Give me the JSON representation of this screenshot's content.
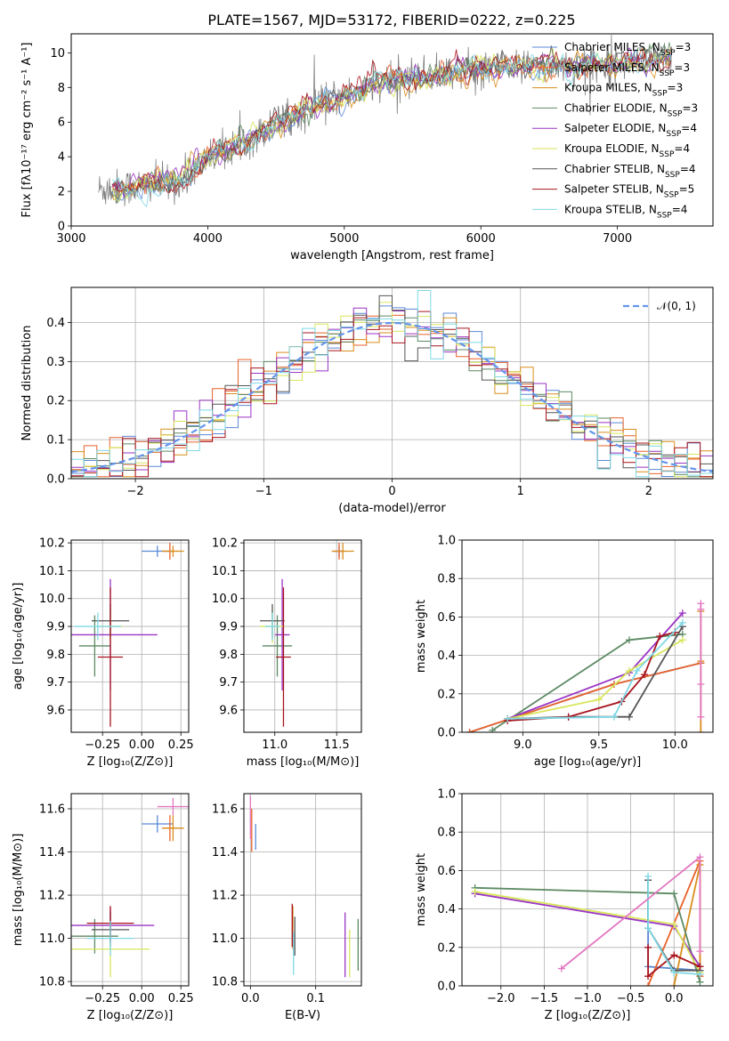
{
  "figure": {
    "title": "PLATE=1567, MJD=53172, FIBERID=0222, z=0.225"
  },
  "models": [
    {
      "name": "Chabrier MILES, N_SSP=3",
      "label": "Chabrier MILES, N",
      "sub": "SSP",
      "tail": "=3",
      "color": "#5b88d6"
    },
    {
      "name": "Salpeter MILES, N_SSP=3",
      "label": "Salpeter MILES, N",
      "sub": "SSP",
      "tail": "=3",
      "color": "#e9622a"
    },
    {
      "name": "Kroupa MILES, N_SSP=3",
      "label": "Kroupa MILES, N",
      "sub": "SSP",
      "tail": "=3",
      "color": "#d98e1d"
    },
    {
      "name": "Chabrier ELODIE, N_SSP=3",
      "label": "Chabrier ELODIE, N",
      "sub": "SSP",
      "tail": "=3",
      "color": "#5d8a64"
    },
    {
      "name": "Salpeter ELODIE, N_SSP=4",
      "label": "Salpeter ELODIE, N",
      "sub": "SSP",
      "tail": "=4",
      "color": "#9a35c4"
    },
    {
      "name": "Kroupa ELODIE, N_SSP=4",
      "label": "Kroupa ELODIE, N",
      "sub": "SSP",
      "tail": "=4",
      "color": "#d8e65a"
    },
    {
      "name": "Chabrier STELIB, N_SSP=4",
      "label": "Chabrier STELIB, N",
      "sub": "SSP",
      "tail": "=4",
      "color": "#555555"
    },
    {
      "name": "Salpeter STELIB, N_SSP=5",
      "label": "Salpeter STELIB, N",
      "sub": "SSP",
      "tail": "=5",
      "color": "#a8141e"
    },
    {
      "name": "Kroupa STELIB, N_SSP=4",
      "label": "Kroupa STELIB, N",
      "sub": "SSP",
      "tail": "=4",
      "color": "#7fd8e6"
    }
  ],
  "chart_data": [
    {
      "id": "spectrum",
      "type": "line",
      "title": "PLATE=1567, MJD=53172, FIBERID=0222, z=0.225",
      "xlabel": "wavelength [Angstrom, rest frame]",
      "ylabel": "Flux [fλ10⁻¹⁷ erg cm⁻² s⁻¹ A⁻¹]",
      "xlim": [
        3000,
        7700
      ],
      "ylim": [
        0,
        11.1
      ],
      "xticks": [
        3000,
        4000,
        5000,
        6000,
        7000
      ],
      "yticks": [
        0,
        2,
        4,
        6,
        8,
        10
      ],
      "grid": false,
      "legend": "top-right",
      "observed_color": "#808080",
      "continuum": [
        [
          3200,
          2.1
        ],
        [
          3500,
          2.3
        ],
        [
          3800,
          2.6
        ],
        [
          4000,
          4.0
        ],
        [
          4300,
          5.0
        ],
        [
          4600,
          6.3
        ],
        [
          4900,
          7.2
        ],
        [
          5200,
          8.1
        ],
        [
          5600,
          8.7
        ],
        [
          6000,
          9.1
        ],
        [
          6500,
          9.2
        ],
        [
          7000,
          9.4
        ],
        [
          7400,
          9.7
        ]
      ]
    },
    {
      "id": "residuals",
      "type": "line",
      "xlabel": "(data-model)/error",
      "ylabel": "Normed distribution",
      "xlim": [
        -2.5,
        2.5
      ],
      "ylim": [
        0,
        0.49
      ],
      "xticks": [
        -2,
        -1,
        0,
        1,
        2
      ],
      "yticks": [
        0.0,
        0.1,
        0.2,
        0.3,
        0.4
      ],
      "grid": true,
      "legend": "top-right",
      "reference": {
        "name": "𝒩(0, 1)",
        "mean": 0,
        "sigma": 1,
        "color": "#6495ed"
      },
      "histogram_bin_width": 0.1
    },
    {
      "id": "age_vs_Z",
      "type": "scatter",
      "xlabel": "Z [log₁₀(Z/Z⊙)]",
      "ylabel": "age [log₁₀(age/yr)]",
      "xlim": [
        -0.45,
        0.3
      ],
      "ylim": [
        9.52,
        10.21
      ],
      "xticks": [
        -0.25,
        0.0,
        0.25
      ],
      "yticks": [
        9.6,
        9.7,
        9.8,
        9.9,
        10.0,
        10.1,
        10.2
      ],
      "grid": true,
      "points": [
        {
          "model": 0,
          "x": 0.1,
          "xerr": 0.1,
          "y": 10.17,
          "yerr": 0.02
        },
        {
          "model": 1,
          "x": 0.18,
          "xerr": 0.05,
          "y": 10.17,
          "yerr": 0.03
        },
        {
          "model": 2,
          "x": 0.2,
          "xerr": 0.07,
          "y": 10.17,
          "yerr": 0.02
        },
        {
          "model": 3,
          "x": -0.3,
          "xerr": 0.1,
          "y": 9.83,
          "yerr": 0.11
        },
        {
          "model": 4,
          "x": -0.2,
          "xerr": 0.3,
          "y": 9.87,
          "yerr": 0.2
        },
        {
          "model": 5,
          "x": -0.2,
          "xerr": 0.08,
          "y": 9.9,
          "yerr": 0.06
        },
        {
          "model": 6,
          "x": -0.2,
          "xerr": 0.12,
          "y": 9.92,
          "yerr": 0.06
        },
        {
          "model": 7,
          "x": -0.2,
          "xerr": 0.08,
          "y": 9.79,
          "yerr": 0.25
        },
        {
          "model": 8,
          "x": -0.28,
          "xerr": 0.15,
          "y": 9.9,
          "yerr": 0.05
        }
      ]
    },
    {
      "id": "age_vs_mass",
      "type": "scatter",
      "xlabel": "mass [log₁₀(M/M⊙)]",
      "ylabel": "",
      "xlim": [
        10.75,
        11.7
      ],
      "ylim": [
        9.52,
        10.21
      ],
      "xticks": [
        11.0,
        11.5
      ],
      "yticks": [
        9.6,
        9.7,
        9.8,
        9.9,
        10.0,
        10.1,
        10.2
      ],
      "grid": true,
      "points": [
        {
          "model": 0,
          "x": 11.52,
          "xerr": 0.04,
          "y": 10.17,
          "yerr": 0.02
        },
        {
          "model": 1,
          "x": 11.52,
          "xerr": 0.05,
          "y": 10.17,
          "yerr": 0.03
        },
        {
          "model": 2,
          "x": 11.55,
          "xerr": 0.09,
          "y": 10.17,
          "yerr": 0.03
        },
        {
          "model": 3,
          "x": 11.02,
          "xerr": 0.12,
          "y": 9.83,
          "yerr": 0.11
        },
        {
          "model": 4,
          "x": 11.06,
          "xerr": 0.06,
          "y": 9.87,
          "yerr": 0.2
        },
        {
          "model": 5,
          "x": 10.98,
          "xerr": 0.1,
          "y": 9.9,
          "yerr": 0.06
        },
        {
          "model": 6,
          "x": 10.98,
          "xerr": 0.1,
          "y": 9.92,
          "yerr": 0.06
        },
        {
          "model": 7,
          "x": 11.07,
          "xerr": 0.06,
          "y": 9.79,
          "yerr": 0.25
        },
        {
          "model": 8,
          "x": 10.98,
          "xerr": 0.06,
          "y": 9.9,
          "yerr": 0.05
        }
      ]
    },
    {
      "id": "weight_vs_age",
      "type": "line",
      "xlabel": "age [log₁₀(age/yr)]",
      "ylabel": "mass weight",
      "xlim": [
        8.6,
        10.25
      ],
      "ylim": [
        0,
        1.0
      ],
      "xticks": [
        9.0,
        9.5,
        10.0
      ],
      "yticks": [
        0.0,
        0.2,
        0.4,
        0.6,
        0.8,
        1.0
      ],
      "grid": true,
      "series": [
        {
          "model": 0,
          "x": [
            8.65,
            9.6,
            10.17
          ],
          "y": [
            0.0,
            0.25,
            0.36
          ]
        },
        {
          "model": 1,
          "x": [
            8.65,
            9.6,
            10.17
          ],
          "y": [
            0.0,
            0.25,
            0.36
          ]
        },
        {
          "model": 2,
          "x": [
            10.17,
            10.17,
            10.17
          ],
          "y": [
            0.0,
            0.37,
            0.63
          ]
        },
        {
          "model": 3,
          "x": [
            8.8,
            9.7,
            10.05
          ],
          "y": [
            0.01,
            0.48,
            0.51
          ]
        },
        {
          "model": 4,
          "x": [
            8.9,
            9.7,
            10.05
          ],
          "y": [
            0.07,
            0.31,
            0.62
          ]
        },
        {
          "model": 5,
          "x": [
            8.9,
            9.5,
            9.7,
            10.05
          ],
          "y": [
            0.07,
            0.17,
            0.32,
            0.48
          ]
        },
        {
          "model": 6,
          "x": [
            8.9,
            9.3,
            9.7,
            10.05
          ],
          "y": [
            0.07,
            0.08,
            0.08,
            0.55
          ]
        },
        {
          "model": 7,
          "x": [
            8.9,
            9.3,
            9.65,
            9.8,
            9.9,
            10.0
          ],
          "y": [
            0.06,
            0.08,
            0.16,
            0.3,
            0.5,
            0.52
          ]
        },
        {
          "model": 8,
          "x": [
            8.9,
            9.6,
            9.75,
            10.05
          ],
          "y": [
            0.07,
            0.08,
            0.32,
            0.57
          ]
        },
        {
          "model": 4,
          "x": [
            10.17,
            10.17,
            10.17,
            10.17
          ],
          "y": [
            0.08,
            0.25,
            0.64,
            0.67
          ],
          "pink": true
        }
      ]
    },
    {
      "id": "mass_vs_Z",
      "type": "scatter",
      "xlabel": "Z [log₁₀(Z/Z⊙)]",
      "ylabel": "mass [log₁₀(M/M⊙)]",
      "xlim": [
        -0.45,
        0.3
      ],
      "ylim": [
        10.78,
        11.67
      ],
      "xticks": [
        -0.25,
        0.0,
        0.25
      ],
      "yticks": [
        10.8,
        11.0,
        11.2,
        11.4,
        11.6
      ],
      "grid": true,
      "points": [
        {
          "model": 0,
          "x": 0.1,
          "xerr": 0.1,
          "y": 11.53,
          "yerr": 0.04
        },
        {
          "model": 1,
          "x": 0.18,
          "xerr": 0.05,
          "y": 11.51,
          "yerr": 0.06
        },
        {
          "model": 2,
          "x": 0.2,
          "xerr": 0.07,
          "y": 11.51,
          "yerr": 0.06
        },
        {
          "model": 3,
          "x": -0.3,
          "xerr": 0.15,
          "y": 11.01,
          "yerr": 0.08
        },
        {
          "model": 4,
          "x": -0.2,
          "xerr": 0.28,
          "y": 11.06,
          "yerr": 0.08
        },
        {
          "model": 5,
          "x": -0.2,
          "xerr": 0.25,
          "y": 10.95,
          "yerr": 0.13
        },
        {
          "model": 6,
          "x": -0.2,
          "xerr": 0.12,
          "y": 11.04,
          "yerr": 0.08
        },
        {
          "model": 7,
          "x": -0.2,
          "xerr": 0.15,
          "y": 11.07,
          "yerr": 0.08
        },
        {
          "model": 8,
          "x": -0.2,
          "xerr": 0.15,
          "y": 11.0,
          "yerr": 0.08
        },
        {
          "model": 4,
          "x": 0.2,
          "xerr": 0.1,
          "y": 11.61,
          "yerr": 0.04,
          "pink": true
        }
      ]
    },
    {
      "id": "mass_vs_ebv",
      "type": "scatter",
      "xlabel": "E(B-V)",
      "ylabel": "",
      "xlim": [
        -0.01,
        0.17
      ],
      "ylim": [
        10.78,
        11.67
      ],
      "xticks": [
        0.0,
        0.1
      ],
      "yticks": [
        10.8,
        11.0,
        11.2,
        11.4,
        11.6
      ],
      "grid": true,
      "points": [
        {
          "model": 0,
          "x": 0.008,
          "xerr": 0,
          "y": 11.47,
          "yerr": 0.06
        },
        {
          "model": 1,
          "x": 0.002,
          "xerr": 0,
          "y": 11.5,
          "yerr": 0.1
        },
        {
          "model": 2,
          "x": 0.065,
          "xerr": 0,
          "y": 11.05,
          "yerr": 0.1
        },
        {
          "model": 3,
          "x": 0.165,
          "xerr": 0,
          "y": 10.97,
          "yerr": 0.12
        },
        {
          "model": 4,
          "x": 0.145,
          "xerr": 0,
          "y": 10.97,
          "yerr": 0.15
        },
        {
          "model": 5,
          "x": 0.152,
          "xerr": 0,
          "y": 10.93,
          "yerr": 0.11
        },
        {
          "model": 6,
          "x": 0.068,
          "xerr": 0,
          "y": 11.01,
          "yerr": 0.09
        },
        {
          "model": 7,
          "x": 0.064,
          "xerr": 0,
          "y": 11.06,
          "yerr": 0.1
        },
        {
          "model": 8,
          "x": 0.066,
          "xerr": 0,
          "y": 10.93,
          "yerr": 0.1
        },
        {
          "model": 4,
          "x": 0.0,
          "xerr": 0,
          "y": 11.56,
          "yerr": 0.1,
          "pink": true
        }
      ]
    },
    {
      "id": "weight_vs_Z",
      "type": "line",
      "xlabel": "Z [log₁₀(Z/Z⊙)]",
      "ylabel": "mass weight",
      "xlim": [
        -2.45,
        0.45
      ],
      "ylim": [
        0,
        1.0
      ],
      "xticks": [
        -2.0,
        -1.5,
        -1.0,
        -0.5,
        0.0
      ],
      "yticks": [
        0.0,
        0.2,
        0.4,
        0.6,
        0.8,
        1.0
      ],
      "grid": true,
      "series": [
        {
          "model": 0,
          "x": [
            -0.3,
            -0.3,
            0.3
          ],
          "y": [
            0.55,
            0.1,
            0.08
          ]
        },
        {
          "model": 1,
          "x": [
            -0.3,
            0.3,
            0.3
          ],
          "y": [
            0.0,
            0.65,
            0.05
          ]
        },
        {
          "model": 2,
          "x": [
            0.0,
            0.3,
            0.3
          ],
          "y": [
            0.0,
            0.63,
            0.1
          ]
        },
        {
          "model": 3,
          "x": [
            -2.3,
            0.0,
            0.3
          ],
          "y": [
            0.51,
            0.48,
            0.02
          ]
        },
        {
          "model": 4,
          "x": [
            -2.3,
            0.0,
            0.3
          ],
          "y": [
            0.48,
            0.31,
            0.1
          ]
        },
        {
          "model": 5,
          "x": [
            -2.3,
            0.0,
            0.3
          ],
          "y": [
            0.49,
            0.32,
            0.07
          ]
        },
        {
          "model": 6,
          "x": [
            -0.3,
            -0.3,
            0.0,
            0.3
          ],
          "y": [
            0.55,
            0.3,
            0.08,
            0.08
          ]
        },
        {
          "model": 7,
          "x": [
            -0.3,
            -0.3,
            0.0,
            0.3
          ],
          "y": [
            0.2,
            0.05,
            0.16,
            0.1
          ]
        },
        {
          "model": 8,
          "x": [
            -0.3,
            -0.3,
            0.0,
            0.3
          ],
          "y": [
            0.57,
            0.3,
            0.07,
            0.06
          ]
        },
        {
          "model": 4,
          "x": [
            -1.3,
            0.3,
            0.3
          ],
          "y": [
            0.09,
            0.67,
            0.18
          ],
          "pink": true
        }
      ]
    }
  ]
}
